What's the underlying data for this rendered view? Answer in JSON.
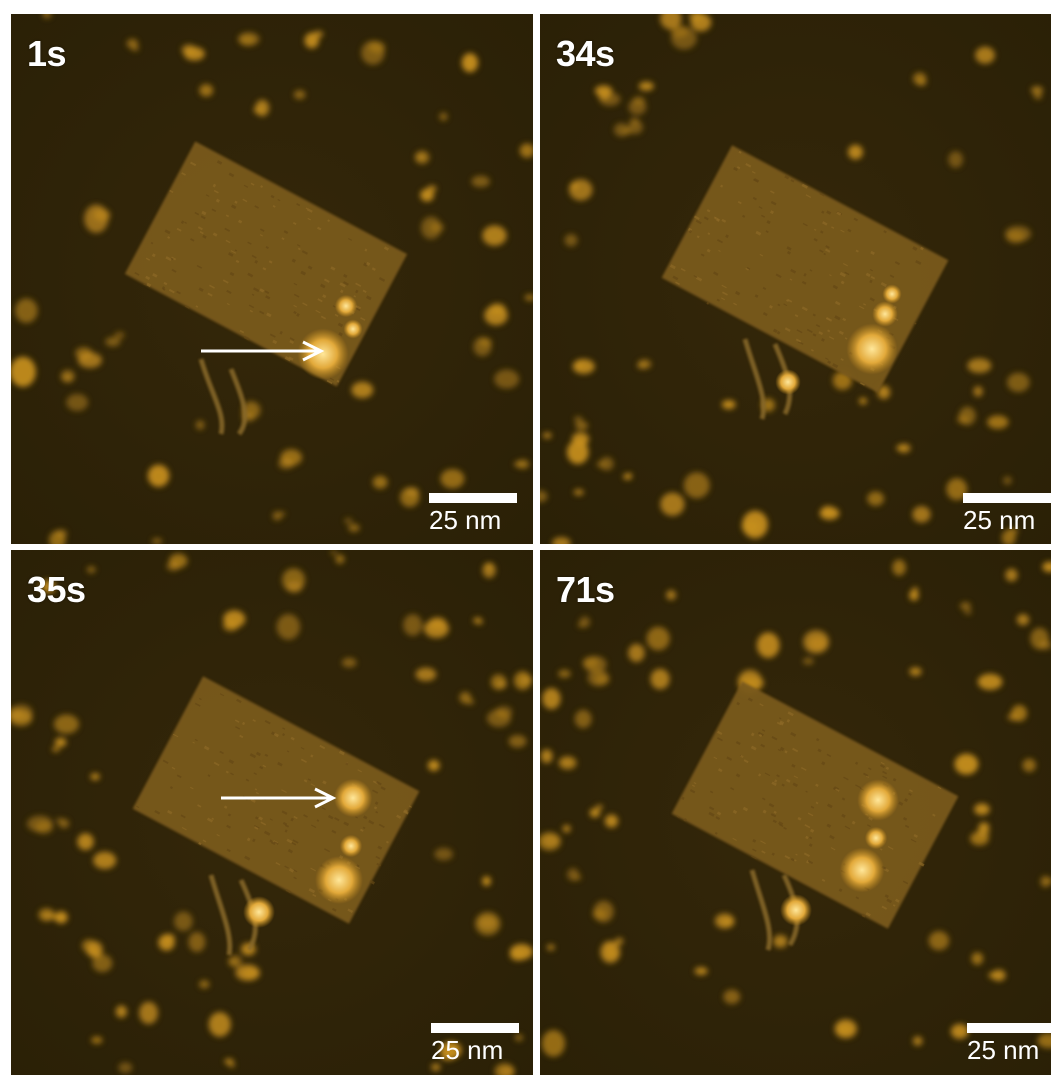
{
  "panels": [
    {
      "time": "1s",
      "scale": "25 nm",
      "arrow": true
    },
    {
      "time": "34s",
      "scale": "25 nm",
      "arrow": false
    },
    {
      "time": "35s",
      "scale": "25 nm",
      "arrow": true
    },
    {
      "time": "71s",
      "scale": "25 nm",
      "arrow": false
    }
  ],
  "colors": {
    "background": "#2a2006",
    "origami": "#7a5a1c",
    "particle": "#c8901f",
    "highlight": "#ffe79a",
    "divider": "#ffffff"
  }
}
